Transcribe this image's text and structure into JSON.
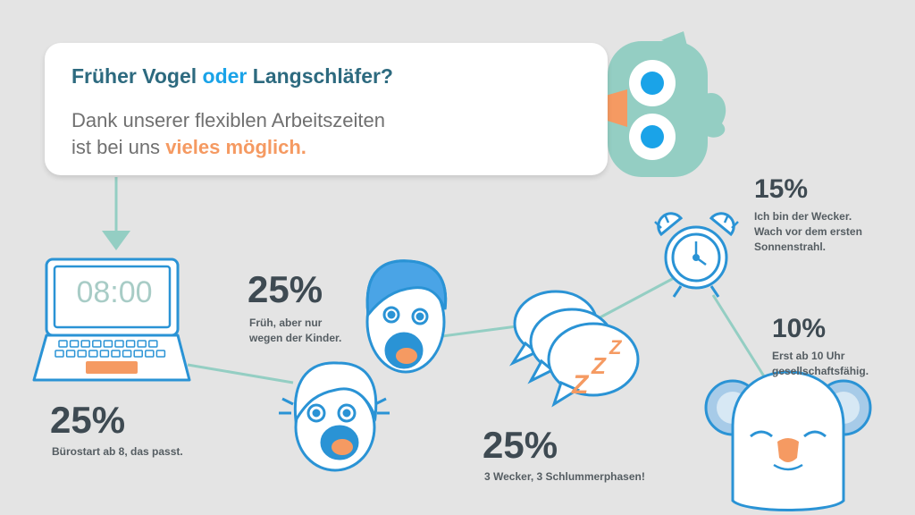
{
  "headline": {
    "title_part1": "Früher Vogel",
    "title_or": "oder",
    "title_part2": "Langschläfer?",
    "subtitle_line1": "Dank unserer flexiblen Arbeitszeiten",
    "subtitle_line2_prefix": "ist bei uns",
    "subtitle_highlight": "vieles möglich."
  },
  "laptop": {
    "screen_time": "08:00"
  },
  "stats": [
    {
      "percent": "25%",
      "lines": [
        "Bürostart ab 8, das passt."
      ]
    },
    {
      "percent": "25%",
      "lines": [
        "Früh, aber nur",
        "wegen der Kinder."
      ]
    },
    {
      "percent": "25%",
      "lines": [
        "3 Wecker, 3 Schlummerphasen!"
      ]
    },
    {
      "percent": "15%",
      "lines": [
        "Ich bin der Wecker.",
        "Wach vor dem ersten",
        "Sonnenstrahl."
      ]
    },
    {
      "percent": "10%",
      "lines": [
        "Erst ab 10 Uhr",
        "gesellschaftsfähig."
      ]
    }
  ],
  "zzz": [
    "Z",
    "Z",
    "Z"
  ],
  "colors": {
    "background": "#e4e4e4",
    "teal_line": "#94cec3",
    "outline_blue": "#2a93d5",
    "accent_orange": "#f59a62",
    "title_dark": "#2d6a7f",
    "title_blue": "#1aa3e8"
  },
  "icons": [
    "bird-icon",
    "laptop-icon",
    "shocked-face-icon",
    "screaming-face-icon",
    "speech-bubbles-icon",
    "alarm-clock-icon",
    "koala-icon"
  ]
}
